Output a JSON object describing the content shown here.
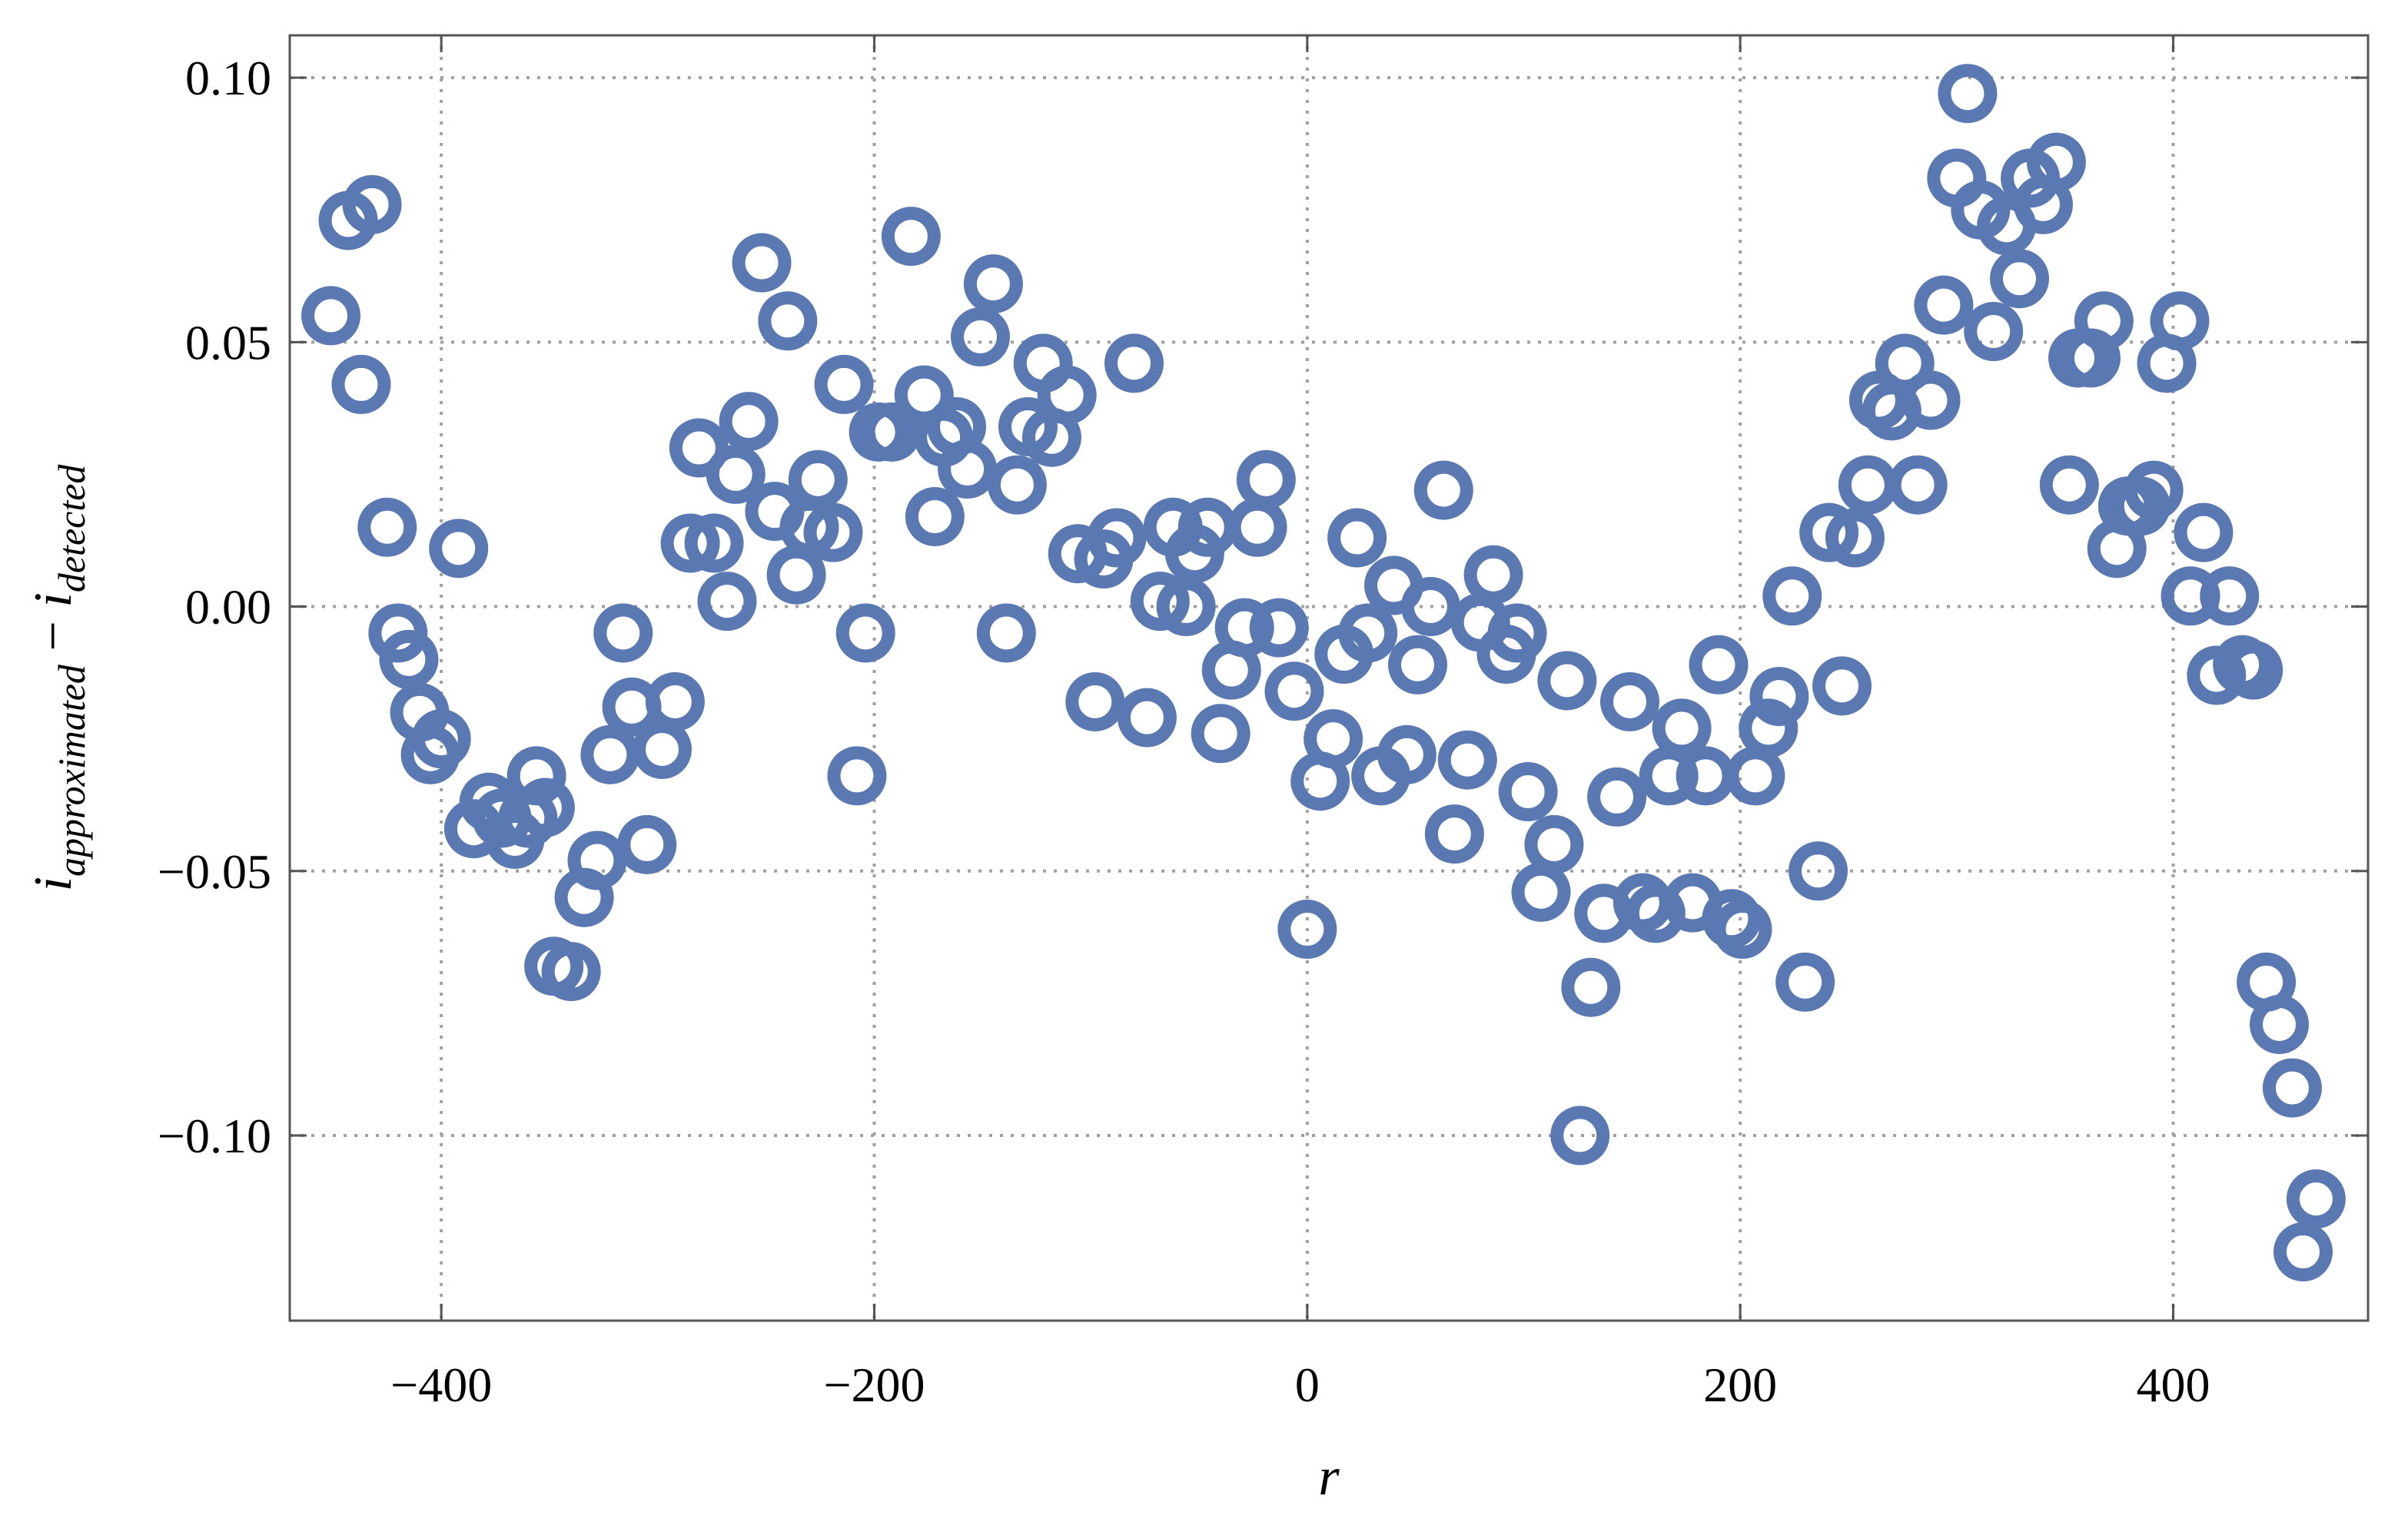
{
  "chart_data": {
    "type": "scatter",
    "xlabel": "r",
    "ylabel": {
      "part1": "i",
      "sub1": "approximated",
      "operator": " − ",
      "part2": "i",
      "sub2": "detected"
    },
    "xlim": [
      -470,
      490
    ],
    "ylim": [
      -0.135,
      0.108
    ],
    "x_ticks": [
      -400,
      -200,
      0,
      200,
      400
    ],
    "x_tick_labels": [
      "−400",
      "−200",
      "0",
      "200",
      "400"
    ],
    "y_ticks": [
      0.1,
      0.05,
      0.0,
      -0.05,
      -0.1
    ],
    "y_tick_labels": [
      "0.10",
      "0.05",
      "0.00",
      "−0.05",
      "−0.10"
    ],
    "grid": true,
    "marker": "open-circle",
    "color": "#5a78b2",
    "points": [
      [
        -451,
        0.055
      ],
      [
        -443,
        0.073
      ],
      [
        -437,
        0.042
      ],
      [
        -432,
        0.076
      ],
      [
        -425,
        0.015
      ],
      [
        -420,
        -0.005
      ],
      [
        -415,
        -0.01
      ],
      [
        -410,
        -0.02
      ],
      [
        -405,
        -0.028
      ],
      [
        -400,
        -0.025
      ],
      [
        -392,
        0.011
      ],
      [
        -385,
        -0.042
      ],
      [
        -378,
        -0.037
      ],
      [
        -372,
        -0.04
      ],
      [
        -366,
        -0.044
      ],
      [
        -360,
        -0.04
      ],
      [
        -356,
        -0.032
      ],
      [
        -352,
        -0.038
      ],
      [
        -348,
        -0.068
      ],
      [
        -340,
        -0.069
      ],
      [
        -334,
        -0.055
      ],
      [
        -328,
        -0.048
      ],
      [
        -322,
        -0.028
      ],
      [
        -316,
        -0.005
      ],
      [
        -312,
        -0.019
      ],
      [
        -305,
        -0.045
      ],
      [
        -298,
        -0.027
      ],
      [
        -292,
        -0.018
      ],
      [
        -285,
        0.012
      ],
      [
        -281,
        0.03
      ],
      [
        -274,
        0.012
      ],
      [
        -268,
        0.001
      ],
      [
        -264,
        0.025
      ],
      [
        -258,
        0.035
      ],
      [
        -252,
        0.065
      ],
      [
        -246,
        0.018
      ],
      [
        -240,
        0.054
      ],
      [
        -236,
        0.006
      ],
      [
        -230,
        0.015
      ],
      [
        -226,
        0.024
      ],
      [
        -219,
        0.014
      ],
      [
        -214,
        0.042
      ],
      [
        -208,
        -0.032
      ],
      [
        -204,
        -0.005
      ],
      [
        -198,
        0.033
      ],
      [
        -192,
        0.033
      ],
      [
        -183,
        0.07
      ],
      [
        -177,
        0.04
      ],
      [
        -172,
        0.017
      ],
      [
        -168,
        0.032
      ],
      [
        -162,
        0.034
      ],
      [
        -157,
        0.026
      ],
      [
        -151,
        0.051
      ],
      [
        -145,
        0.061
      ],
      [
        -139,
        -0.005
      ],
      [
        -134,
        0.023
      ],
      [
        -129,
        0.034
      ],
      [
        -122,
        0.046
      ],
      [
        -118,
        0.032
      ],
      [
        -111,
        0.04
      ],
      [
        -106,
        0.01
      ],
      [
        -98,
        -0.018
      ],
      [
        -94,
        0.009
      ],
      [
        -88,
        0.013
      ],
      [
        -80,
        0.046
      ],
      [
        -74,
        -0.021
      ],
      [
        -68,
        0.001
      ],
      [
        -62,
        0.015
      ],
      [
        -56,
        0.0
      ],
      [
        -52,
        0.01
      ],
      [
        -46,
        0.015
      ],
      [
        -40,
        -0.024
      ],
      [
        -35,
        -0.012
      ],
      [
        -29,
        -0.004
      ],
      [
        -23,
        0.015
      ],
      [
        -19,
        0.024
      ],
      [
        -13,
        -0.004
      ],
      [
        -6,
        -0.016
      ],
      [
        0,
        -0.061
      ],
      [
        6,
        -0.033
      ],
      [
        12,
        -0.025
      ],
      [
        17,
        -0.009
      ],
      [
        23,
        0.013
      ],
      [
        28,
        -0.005
      ],
      [
        34,
        -0.032
      ],
      [
        40,
        0.004
      ],
      [
        46,
        -0.028
      ],
      [
        51,
        -0.011
      ],
      [
        57,
        0.0
      ],
      [
        63,
        0.022
      ],
      [
        68,
        -0.043
      ],
      [
        74,
        -0.029
      ],
      [
        80,
        -0.003
      ],
      [
        86,
        0.006
      ],
      [
        92,
        -0.009
      ],
      [
        97,
        -0.005
      ],
      [
        102,
        -0.035
      ],
      [
        108,
        -0.054
      ],
      [
        114,
        -0.045
      ],
      [
        120,
        -0.014
      ],
      [
        126,
        -0.1
      ],
      [
        131,
        -0.072
      ],
      [
        137,
        -0.058
      ],
      [
        143,
        -0.036
      ],
      [
        149,
        -0.018
      ],
      [
        155,
        -0.056
      ],
      [
        161,
        -0.058
      ],
      [
        167,
        -0.032
      ],
      [
        173,
        -0.023
      ],
      [
        178,
        -0.056
      ],
      [
        184,
        -0.032
      ],
      [
        190,
        -0.011
      ],
      [
        196,
        -0.059
      ],
      [
        201,
        -0.061
      ],
      [
        207,
        -0.032
      ],
      [
        213,
        -0.023
      ],
      [
        218,
        -0.017
      ],
      [
        224,
        0.002
      ],
      [
        230,
        -0.071
      ],
      [
        236,
        -0.05
      ],
      [
        241,
        0.014
      ],
      [
        247,
        -0.015
      ],
      [
        253,
        0.013
      ],
      [
        259,
        0.023
      ],
      [
        264,
        0.039
      ],
      [
        270,
        0.037
      ],
      [
        276,
        0.046
      ],
      [
        282,
        0.023
      ],
      [
        288,
        0.039
      ],
      [
        294,
        0.057
      ],
      [
        300,
        0.081
      ],
      [
        305,
        0.097
      ],
      [
        311,
        0.075
      ],
      [
        317,
        0.052
      ],
      [
        323,
        0.072
      ],
      [
        329,
        0.062
      ],
      [
        334,
        0.081
      ],
      [
        340,
        0.076
      ],
      [
        346,
        0.084
      ],
      [
        352,
        0.023
      ],
      [
        356,
        0.047
      ],
      [
        362,
        0.047
      ],
      [
        368,
        0.054
      ],
      [
        374,
        0.011
      ],
      [
        379,
        0.019
      ],
      [
        385,
        0.019
      ],
      [
        391,
        0.022
      ],
      [
        397,
        0.046
      ],
      [
        403,
        0.054
      ],
      [
        408,
        0.002
      ],
      [
        414,
        0.014
      ],
      [
        420,
        -0.013
      ],
      [
        426,
        0.002
      ],
      [
        432,
        -0.011
      ],
      [
        437,
        -0.012
      ],
      [
        443,
        -0.071
      ],
      [
        449,
        -0.079
      ],
      [
        455,
        -0.091
      ],
      [
        460,
        -0.122
      ],
      [
        466,
        -0.112
      ]
    ]
  }
}
